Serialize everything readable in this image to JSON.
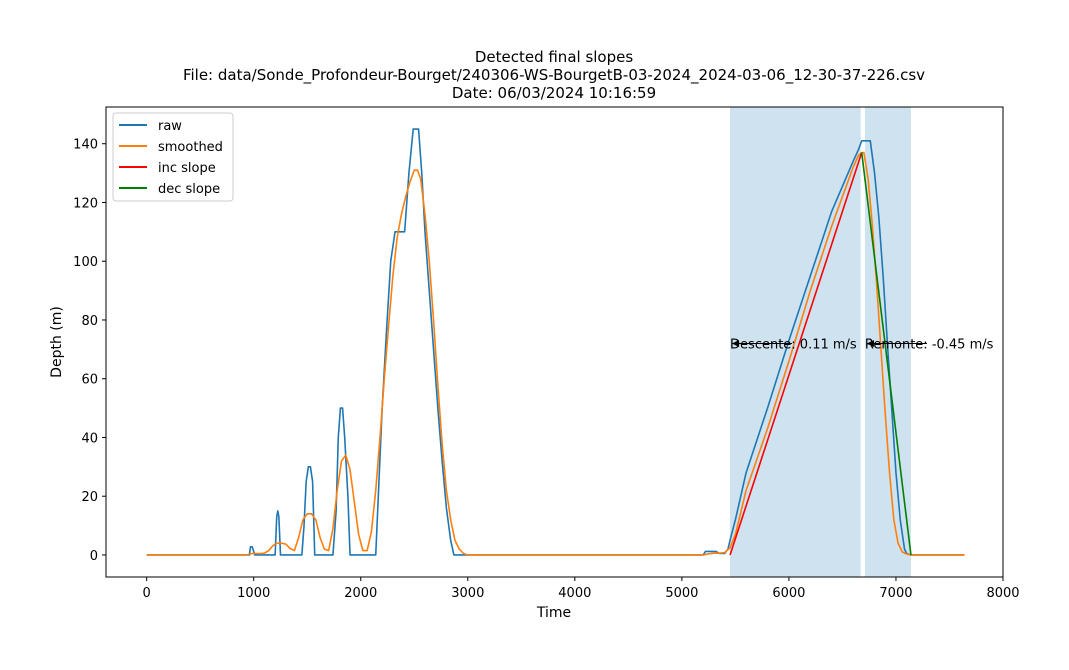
{
  "chart_data": {
    "type": "line",
    "title_lines": [
      "Detected final slopes",
      "File: data/Sonde_Profondeur-Bourget/240306-WS-BourgetB-03-2024_2024-03-06_12-30-37-226.csv",
      "Date: 06/03/2024 10:16:59"
    ],
    "xlabel": "Time",
    "ylabel": "Depth (m)",
    "xlim": [
      -380,
      8000
    ],
    "ylim": [
      -7.5,
      152.5
    ],
    "xticks": [
      0,
      1000,
      2000,
      3000,
      4000,
      5000,
      6000,
      7000,
      8000
    ],
    "yticks": [
      0,
      20,
      40,
      60,
      80,
      100,
      120,
      140
    ],
    "legend_position": "top-left",
    "spans": [
      {
        "x0": 5450,
        "x1": 6670,
        "color": "#cfe2ef"
      },
      {
        "x0": 6710,
        "x1": 7140,
        "color": "#cfe2ef"
      }
    ],
    "annotations": [
      {
        "text": "Descente: 0.11 m/s",
        "x": 5450,
        "y": 72
      },
      {
        "text": "Remonte: -0.45 m/s",
        "x": 6710,
        "y": 72
      }
    ],
    "series": [
      {
        "name": "raw",
        "color": "#1f77b4",
        "x": [
          0,
          960,
          970,
          985,
          995,
          1010,
          1030,
          1200,
          1215,
          1225,
          1235,
          1250,
          1270,
          1450,
          1470,
          1490,
          1510,
          1530,
          1550,
          1570,
          1740,
          1770,
          1790,
          1810,
          1830,
          1850,
          1880,
          1900,
          1930,
          2140,
          2170,
          2200,
          2240,
          2280,
          2320,
          2360,
          2370,
          2410,
          2450,
          2490,
          2500,
          2540,
          2570,
          2600,
          2640,
          2680,
          2720,
          2760,
          2800,
          2840,
          2870,
          2900,
          5200,
          5220,
          5230,
          5320,
          5350,
          5400,
          5430,
          5450,
          5500,
          5600,
          5800,
          6000,
          6200,
          6400,
          6600,
          6650,
          6680,
          6700,
          6760,
          6800,
          6840,
          6880,
          6920,
          6960,
          7000,
          7040,
          7080,
          7100,
          7140,
          7600,
          7640
        ],
        "values": [
          0,
          0,
          2.8,
          2.8,
          1.8,
          0,
          0,
          0,
          13,
          15,
          13,
          0,
          0,
          0,
          10,
          25,
          30,
          30,
          25,
          0,
          0,
          15,
          40,
          50,
          50,
          40,
          20,
          0,
          0,
          0,
          25,
          50,
          76,
          100,
          110,
          110,
          110,
          110,
          130,
          145,
          145,
          145,
          130,
          110,
          90,
          70,
          50,
          32,
          16,
          5,
          0,
          0,
          0,
          1.2,
          1.2,
          1.2,
          0.5,
          0.5,
          2,
          5,
          12,
          28,
          50,
          73,
          95,
          117,
          134,
          138,
          141,
          141,
          141,
          130,
          115,
          95,
          72,
          50,
          28,
          12,
          2,
          0.5,
          0,
          0,
          0
        ]
      },
      {
        "name": "smoothed",
        "color": "#ff7f0e",
        "x": [
          0,
          930,
          960,
          990,
          1020,
          1060,
          1100,
          1140,
          1180,
          1220,
          1260,
          1300,
          1340,
          1380,
          1420,
          1460,
          1500,
          1540,
          1580,
          1620,
          1660,
          1700,
          1740,
          1780,
          1820,
          1860,
          1900,
          1940,
          1980,
          2020,
          2060,
          2100,
          2140,
          2180,
          2220,
          2260,
          2300,
          2340,
          2380,
          2420,
          2460,
          2500,
          2530,
          2560,
          2600,
          2640,
          2680,
          2720,
          2760,
          2800,
          2840,
          2880,
          2920,
          2960,
          3000,
          5200,
          5250,
          5300,
          5350,
          5400,
          5450,
          5500,
          5600,
          5800,
          6000,
          6200,
          6400,
          6600,
          6650,
          6680,
          6700,
          6740,
          6780,
          6820,
          6860,
          6900,
          6940,
          6980,
          7020,
          7060,
          7100,
          7140,
          7200,
          7640
        ],
        "values": [
          0,
          0,
          0.3,
          0.5,
          0.5,
          0.5,
          0.6,
          1.5,
          3.2,
          4,
          4,
          3.7,
          2.2,
          1.5,
          6,
          12,
          14,
          14,
          12,
          6,
          2,
          1.5,
          9,
          22,
          32,
          34,
          29,
          18,
          7,
          1.5,
          1.5,
          8,
          22,
          40,
          60,
          78,
          95,
          108,
          116,
          122,
          127,
          131,
          131,
          128,
          116,
          100,
          80,
          58,
          38,
          22,
          12,
          5,
          2,
          0.5,
          0,
          0,
          0.4,
          0.6,
          0.6,
          0.8,
          2.5,
          7,
          22,
          43,
          66,
          90,
          112,
          132,
          136,
          137,
          137,
          128,
          112,
          92,
          70,
          48,
          28,
          12,
          4,
          1,
          0.3,
          0,
          0,
          0
        ]
      },
      {
        "name": "inc slope",
        "color": "#ff0000",
        "x": [
          5450,
          6680
        ],
        "values": [
          0,
          137
        ]
      },
      {
        "name": "dec slope",
        "color": "#008000",
        "x": [
          6680,
          7140
        ],
        "values": [
          137,
          0
        ]
      }
    ]
  }
}
